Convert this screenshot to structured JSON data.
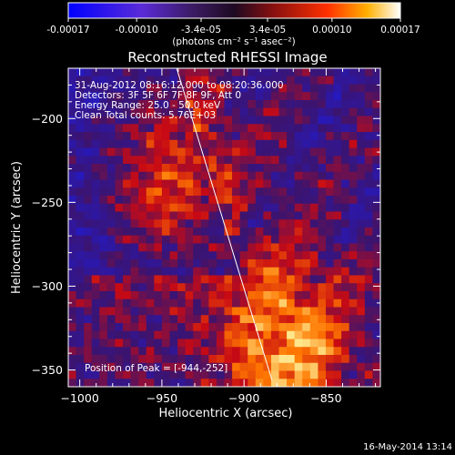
{
  "colorbar": {
    "tick_labels": [
      "-0.00017",
      "-0.00010",
      "-3.4e-05",
      "3.4e-05",
      "0.00010",
      "0.00017"
    ],
    "unit_label": "(photons cm⁻² s⁻¹ asec⁻²)",
    "colors": {
      "negative_low": "#0000ff",
      "negative_mid": "#5a2bd8",
      "zero": "#2a0d36",
      "positive_mid": "#d01a10",
      "positive_high": "#ffa000",
      "positive_max": "#ffffff"
    }
  },
  "title": "Reconstructed RHESSI Image",
  "annotations": {
    "time_range": "31-Aug-2012 08:16:12.000 to 08:20:36.000",
    "detectors": "Detectors: 3F 5F 6F 7F 8F 9F, Att 0",
    "energy_range": "Energy Range: 25.0 - 50.0 keV",
    "algorithm": "Clean    Total counts: 5.76E+03",
    "peak": "Position of Peak = [-944,-252]"
  },
  "footer": {
    "timestamp": "16-May-2014 13:14"
  },
  "chart_data": {
    "type": "heatmap",
    "title": "Reconstructed RHESSI Image",
    "xlabel": "Heliocentric X (arcsec)",
    "ylabel": "Heliocentric Y (arcsec)",
    "xlim": [
      -1007,
      -817
    ],
    "ylim": [
      -360,
      -170
    ],
    "x_ticks": [
      -1000,
      -950,
      -900,
      -850
    ],
    "y_ticks": [
      -350,
      -300,
      -250,
      -200
    ],
    "x_tick_labels": [
      "−1000",
      "−950",
      "−900",
      "−850"
    ],
    "y_tick_labels": [
      "−350",
      "−300",
      "−250",
      "−200"
    ],
    "colorbar_range": [
      -0.00017,
      0.00017
    ],
    "limb_line": [
      [
        -941,
        -170
      ],
      [
        -883,
        -356
      ]
    ],
    "bright_regions": [
      {
        "x": -946,
        "y": -235,
        "level": 0.8
      },
      {
        "x": -872,
        "y": -335,
        "level": 0.9
      }
    ],
    "peak_position": [
      -944,
      -252
    ]
  }
}
